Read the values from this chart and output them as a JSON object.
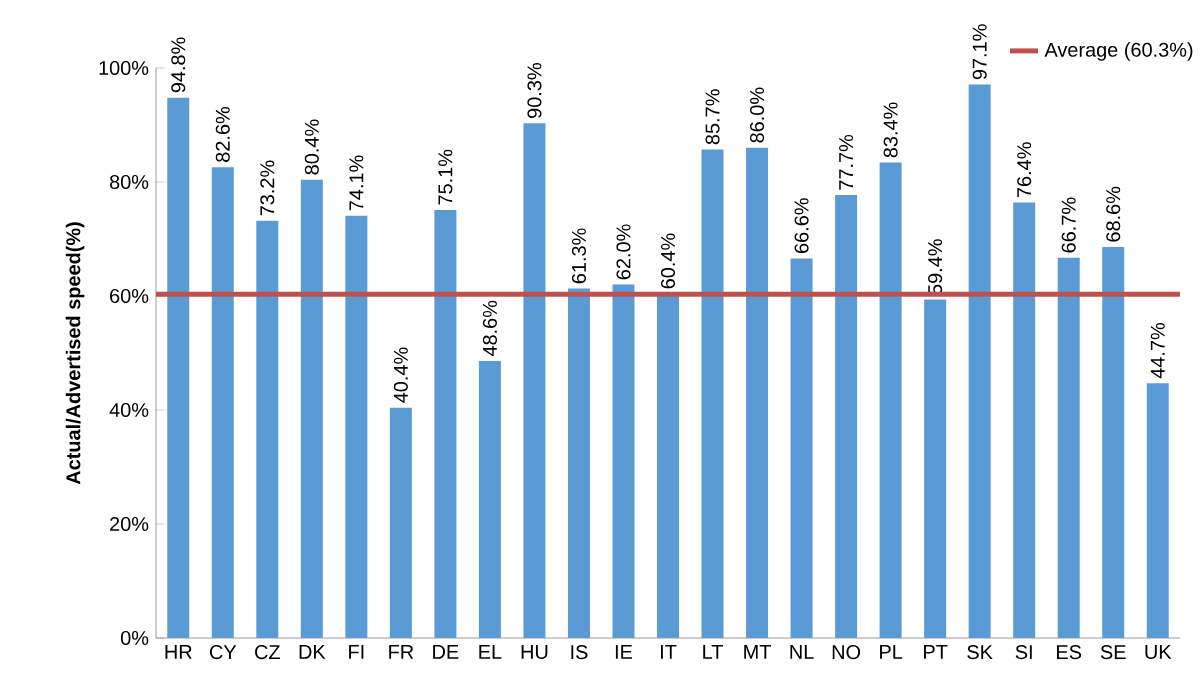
{
  "chart_data": {
    "type": "bar",
    "ylabel": "Actual/Advertised speed(%)",
    "categories": [
      "HR",
      "CY",
      "CZ",
      "DK",
      "FI",
      "FR",
      "DE",
      "EL",
      "HU",
      "IS",
      "IE",
      "IT",
      "LT",
      "MT",
      "NL",
      "NO",
      "PL",
      "PT",
      "SK",
      "SI",
      "ES",
      "SE",
      "UK"
    ],
    "values": [
      94.8,
      82.6,
      73.2,
      80.4,
      74.1,
      40.4,
      75.1,
      48.6,
      90.3,
      61.3,
      62.0,
      60.4,
      85.7,
      86.0,
      66.6,
      77.7,
      83.4,
      59.4,
      97.1,
      76.4,
      66.7,
      68.6,
      44.7
    ],
    "value_labels": [
      "94.8%",
      "82.6%",
      "73.2%",
      "80.4%",
      "74.1%",
      "40.4%",
      "75.1%",
      "48.6%",
      "90.3%",
      "61.3%",
      "62.0%",
      "60.4%",
      "85.7%",
      "86.0%",
      "66.6%",
      "77.7%",
      "83.4%",
      "59.4%",
      "97.1%",
      "76.4%",
      "66.7%",
      "68.6%",
      "44.7%"
    ],
    "color": "#5b9bd5",
    "ylim": [
      0,
      100
    ],
    "yticks": [
      {
        "value": 0,
        "label": "0%"
      },
      {
        "value": 20,
        "label": "20%"
      },
      {
        "value": 40,
        "label": "40%"
      },
      {
        "value": 60,
        "label": "60%"
      },
      {
        "value": 80,
        "label": "80%"
      },
      {
        "value": 100,
        "label": "100%"
      }
    ],
    "ref_lines": [
      {
        "axis": "y",
        "value": 60.3,
        "label": "Average (60.3%)",
        "color": "#c0504d"
      }
    ],
    "legend": "top right"
  }
}
